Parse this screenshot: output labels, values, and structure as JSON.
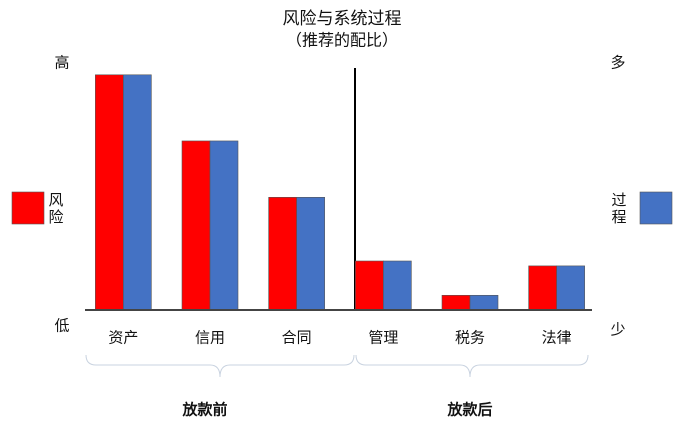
{
  "chart_data": {
    "type": "bar",
    "title": "风险与系统过程",
    "subtitle": "（推荐的配比）",
    "categories": [
      "资产",
      "信用",
      "合同",
      "管理",
      "税务",
      "法律"
    ],
    "series": [
      {
        "name": "风险",
        "color": "#ff0000",
        "values": [
          96,
          69,
          46,
          20,
          6,
          18
        ]
      },
      {
        "name": "过程",
        "color": "#4472c4",
        "values": [
          96,
          69,
          46,
          20,
          6,
          18
        ]
      }
    ],
    "ylim": [
      0,
      100
    ],
    "left_axis": {
      "high": "高",
      "low": "低",
      "color": "#d00000"
    },
    "right_axis": {
      "high": "多",
      "low": "少",
      "color": "#4472c4"
    },
    "groups": [
      "放款前",
      "放款后"
    ]
  }
}
